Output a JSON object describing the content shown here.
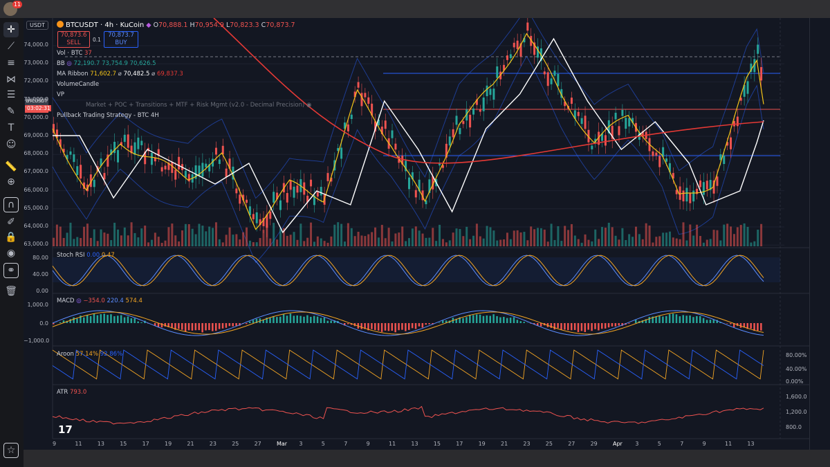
{
  "notification_count": "11",
  "symbol_field": "USDT",
  "header": {
    "title": "BTCUSDT · 4h · KuCoin",
    "ohlc": [
      {
        "k": "O",
        "v": "70,888.1"
      },
      {
        "k": "H",
        "v": "70,954.9"
      },
      {
        "k": "L",
        "v": "70,823.3"
      },
      {
        "k": "C",
        "v": "70,873.7"
      }
    ],
    "sell_price": "70,873.6",
    "sell_label": "SELL",
    "spread": "0.1",
    "buy_price": "70,873.7",
    "buy_label": "BUY"
  },
  "indicators": {
    "vol_name": "Vol · BTC",
    "vol_value": "37",
    "bb_name": "BB",
    "bb_values": [
      "72,190.7",
      "73,754.9",
      "70,626.5"
    ],
    "ma_name": "MA Ribbon",
    "ma_values": [
      "71,602.7",
      "70,482.5",
      "69,837.3"
    ],
    "volume_candle": "VolumeCandle",
    "vp": "VP",
    "vp_detail": "Market + POC + Transitions + MTF + Risk Mgmt (v2.0 - Decimal Precision)",
    "pullback": "Pullback Trading Strategy - BTC 4H"
  },
  "price_tag": {
    "symbol": "BTCUSDT",
    "price": "70,873.7",
    "countdown": "03:02:31"
  },
  "price_axis": [
    "74,000.0",
    "73,000.0",
    "72,000.0",
    "71,000.0",
    "70,000.0",
    "69,000.0",
    "68,000.0",
    "67,000.0",
    "66,000.0",
    "65,000.0",
    "64,000.0",
    "63,000.0"
  ],
  "stoch": {
    "name": "Stoch RSI",
    "k": "0.00",
    "d": "0.47",
    "axis": [
      "80.00",
      "40.00",
      "0.00"
    ]
  },
  "macd": {
    "name": "MACD",
    "values": [
      "−354.0",
      "220.4",
      "574.4"
    ],
    "axis": [
      "1,000.0",
      "0.0",
      "−1,000.0"
    ]
  },
  "aroon": {
    "name": "Aroon",
    "up": "57.14%",
    "down": "92.86%",
    "axis": [
      "80.00%",
      "40.00%",
      "0.00%"
    ]
  },
  "atr": {
    "name": "ATR",
    "value": "793.0",
    "axis": [
      "1,600.0",
      "1,200.0",
      "800.0"
    ]
  },
  "time_axis": [
    "9",
    "11",
    "13",
    "15",
    "17",
    "19",
    "21",
    "23",
    "25",
    "27",
    "Mar",
    "3",
    "5",
    "7",
    "9",
    "11",
    "13",
    "15",
    "17",
    "19",
    "21",
    "23",
    "25",
    "27",
    "29",
    "Apr",
    "3",
    "5",
    "7",
    "9",
    "11",
    "13"
  ],
  "colors": {
    "up": "#26a69a",
    "down": "#ef5350",
    "bb": "#2962ff",
    "ma_fast": "#f5c518",
    "ma_mid": "#ffffff",
    "ma_slow": "#e53935",
    "aroon_up": "#f5a623",
    "aroon_down": "#2962ff"
  },
  "icons": [
    "crosshair-icon",
    "trendline-icon",
    "fib-icon",
    "pattern-icon",
    "gann-icon",
    "brush-icon",
    "text-icon",
    "emoji-icon",
    "ruler-icon",
    "zoom-icon",
    "magnet-icon",
    "lock-draw-icon",
    "lock-icon",
    "eye-icon",
    "link-icon",
    "trash-icon",
    "star-icon"
  ]
}
